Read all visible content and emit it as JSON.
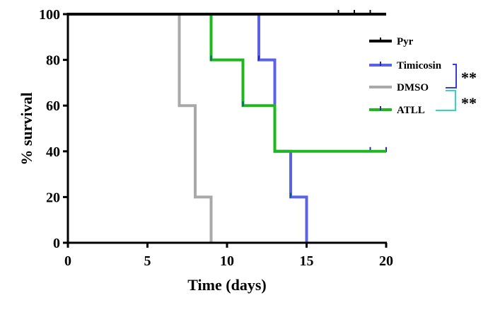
{
  "chart_data": {
    "type": "line",
    "subtype": "kaplan-meier-step",
    "xlabel": "Time (days)",
    "ylabel": "% survival",
    "xlim": [
      0,
      20
    ],
    "ylim": [
      0,
      100
    ],
    "xticks": [
      0,
      5,
      10,
      15,
      20
    ],
    "yticks": [
      0,
      20,
      40,
      60,
      80,
      100
    ],
    "legend_position": "right",
    "series": [
      {
        "name": "Pyr",
        "color": "#000000",
        "steps": [
          [
            0,
            100
          ],
          [
            20,
            100
          ]
        ],
        "censor_marks": [
          [
            17,
            100
          ],
          [
            18,
            100
          ],
          [
            19,
            100
          ]
        ]
      },
      {
        "name": "Timicosin",
        "color": "#5b62e6",
        "steps": [
          [
            0,
            100
          ],
          [
            12,
            100
          ],
          [
            12,
            80
          ],
          [
            13,
            80
          ],
          [
            13,
            40
          ],
          [
            14,
            40
          ],
          [
            14,
            20
          ],
          [
            15,
            20
          ],
          [
            15,
            0
          ]
        ],
        "censor_marks": [
          [
            12,
            80
          ],
          [
            19,
            40
          ],
          [
            20,
            40
          ]
        ]
      },
      {
        "name": "DMSO",
        "color": "#a9a9a9",
        "steps": [
          [
            0,
            100
          ],
          [
            7,
            100
          ],
          [
            7,
            60
          ],
          [
            8,
            60
          ],
          [
            8,
            20
          ],
          [
            9,
            20
          ],
          [
            9,
            0
          ]
        ],
        "censor_marks": []
      },
      {
        "name": "ATLL",
        "color": "#1db81d",
        "steps": [
          [
            9,
            100
          ],
          [
            9,
            80
          ],
          [
            11,
            80
          ],
          [
            11,
            60
          ],
          [
            13,
            60
          ],
          [
            13,
            40
          ],
          [
            20,
            40
          ]
        ],
        "censor_marks": [
          [
            9,
            80
          ],
          [
            11,
            60
          ],
          [
            14,
            20
          ]
        ]
      }
    ],
    "significance": [
      {
        "label": "**",
        "between": [
          "Timicosin",
          "DMSO"
        ],
        "color": "#3a3ad8"
      },
      {
        "label": "**",
        "between": [
          "DMSO",
          "ATLL"
        ],
        "color": "#35d6c0"
      }
    ]
  }
}
